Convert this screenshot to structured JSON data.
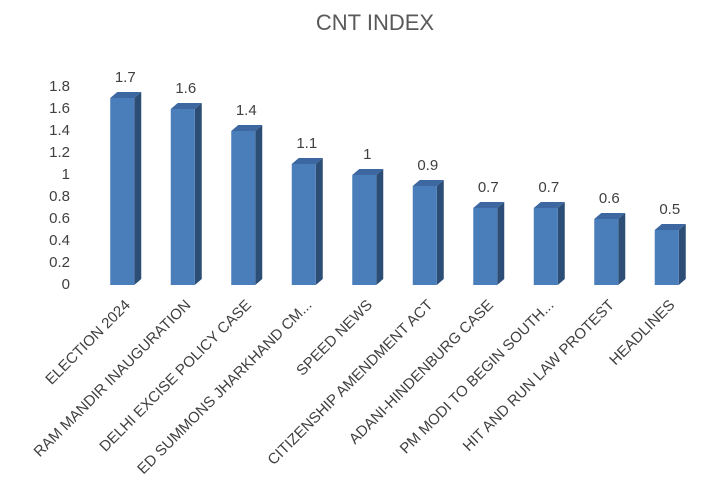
{
  "chart_data": {
    "type": "bar3d",
    "title": "CNT INDEX",
    "categories": [
      "ELECTION 2024",
      "RAM MANDIR INAUGURATION",
      "DELHI EXCISE POLICY CASE",
      "ED SUMMONS JHARKHAND CM...",
      "SPEED NEWS",
      "CITIZENSHIP AMENDMENT ACT",
      "ADANI-HINDENBURG CASE",
      "PM MODI TO BEGIN SOUTH...",
      "HIT AND RUN LAW PROTEST",
      "HEADLINES"
    ],
    "values": [
      1.7,
      1.6,
      1.4,
      1.1,
      1,
      0.9,
      0.7,
      0.7,
      0.6,
      0.5
    ],
    "color": "#4a7ebb",
    "ylim": [
      0,
      1.8
    ],
    "yticks": [
      0,
      0.2,
      0.4,
      0.6,
      0.8,
      1,
      1.2,
      1.4,
      1.6,
      1.8
    ],
    "grid": false
  }
}
